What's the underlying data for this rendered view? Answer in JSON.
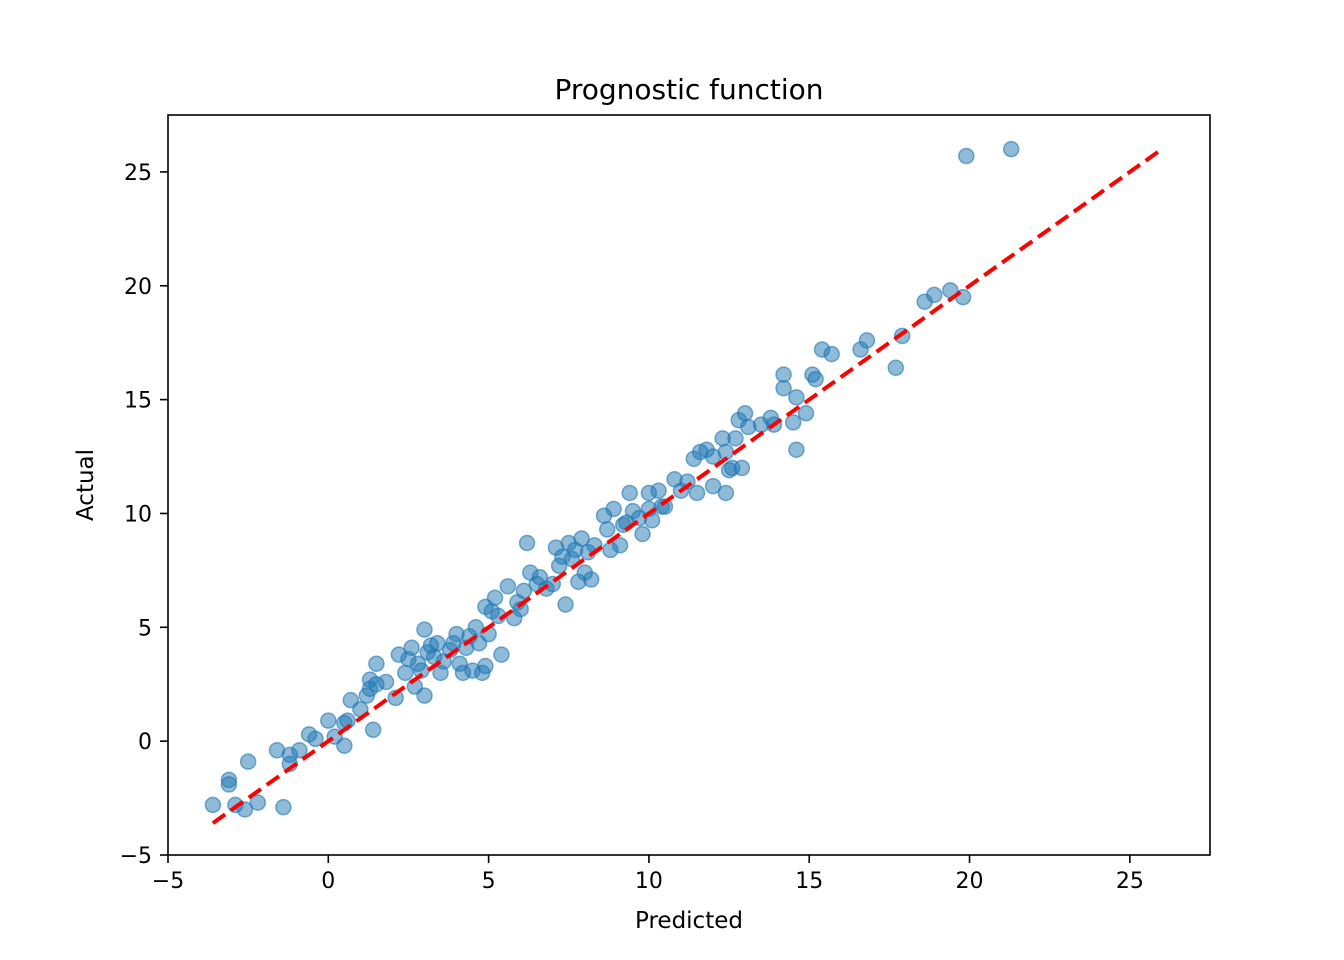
{
  "chart_data": {
    "type": "scatter",
    "title": "Prognostic function",
    "xlabel": "Predicted",
    "ylabel": "Actual",
    "xlim": [
      -5,
      27.5
    ],
    "ylim": [
      -5,
      27.5
    ],
    "xticks": [
      -5,
      0,
      5,
      10,
      15,
      20,
      25
    ],
    "yticks": [
      -5,
      0,
      5,
      10,
      15,
      20,
      25
    ],
    "xtick_labels": [
      "−5",
      "0",
      "5",
      "10",
      "15",
      "20",
      "25"
    ],
    "ytick_labels": [
      "−5",
      "0",
      "5",
      "10",
      "15",
      "20",
      "25"
    ],
    "grid": false,
    "legend": "none",
    "colors": {
      "points": "#1f77b4",
      "reference_line": "#ff0000",
      "axes": "#000000"
    },
    "reference_line": {
      "x": [
        -3.6,
        26
      ],
      "y": [
        -3.6,
        26
      ],
      "style": "dashed"
    },
    "series": [
      {
        "points": [
          [
            -3.6,
            -2.8
          ],
          [
            -3.1,
            -1.7
          ],
          [
            -3.1,
            -1.9
          ],
          [
            -2.9,
            -2.8
          ],
          [
            -2.6,
            -3.0
          ],
          [
            -2.5,
            -0.9
          ],
          [
            -2.2,
            -2.7
          ],
          [
            -1.6,
            -0.4
          ],
          [
            -1.4,
            -2.9
          ],
          [
            -1.2,
            -0.6
          ],
          [
            -1.2,
            -1.0
          ],
          [
            -0.9,
            -0.4
          ],
          [
            -0.6,
            0.3
          ],
          [
            -0.4,
            0.1
          ],
          [
            0.0,
            0.9
          ],
          [
            0.2,
            0.2
          ],
          [
            0.5,
            0.8
          ],
          [
            0.5,
            -0.2
          ],
          [
            0.6,
            0.9
          ],
          [
            0.7,
            1.8
          ],
          [
            1.0,
            1.4
          ],
          [
            1.2,
            2.0
          ],
          [
            1.3,
            2.7
          ],
          [
            1.3,
            2.3
          ],
          [
            1.4,
            0.5
          ],
          [
            1.5,
            3.4
          ],
          [
            1.5,
            2.5
          ],
          [
            1.8,
            2.6
          ],
          [
            2.1,
            1.9
          ],
          [
            2.2,
            3.8
          ],
          [
            2.4,
            3.0
          ],
          [
            2.5,
            3.6
          ],
          [
            2.6,
            4.1
          ],
          [
            2.7,
            2.4
          ],
          [
            2.8,
            3.4
          ],
          [
            2.9,
            3.1
          ],
          [
            3.0,
            4.9
          ],
          [
            3.0,
            2.0
          ],
          [
            3.1,
            3.9
          ],
          [
            3.2,
            4.2
          ],
          [
            3.3,
            3.7
          ],
          [
            3.4,
            4.3
          ],
          [
            3.5,
            3.0
          ],
          [
            3.6,
            3.5
          ],
          [
            3.8,
            4.0
          ],
          [
            3.9,
            4.3
          ],
          [
            4.0,
            4.7
          ],
          [
            4.1,
            3.4
          ],
          [
            4.2,
            3.0
          ],
          [
            4.3,
            4.1
          ],
          [
            4.4,
            4.6
          ],
          [
            4.5,
            3.1
          ],
          [
            4.6,
            5.0
          ],
          [
            4.7,
            4.3
          ],
          [
            4.8,
            3.0
          ],
          [
            4.9,
            5.9
          ],
          [
            4.9,
            3.3
          ],
          [
            5.0,
            4.7
          ],
          [
            5.1,
            5.7
          ],
          [
            5.2,
            6.3
          ],
          [
            5.3,
            5.5
          ],
          [
            5.4,
            3.8
          ],
          [
            5.6,
            6.8
          ],
          [
            5.8,
            5.4
          ],
          [
            5.9,
            6.1
          ],
          [
            6.0,
            5.8
          ],
          [
            6.1,
            6.6
          ],
          [
            6.2,
            8.7
          ],
          [
            6.3,
            7.4
          ],
          [
            6.5,
            6.9
          ],
          [
            6.6,
            7.2
          ],
          [
            6.8,
            6.7
          ],
          [
            7.0,
            6.9
          ],
          [
            7.1,
            8.5
          ],
          [
            7.2,
            7.7
          ],
          [
            7.3,
            8.1
          ],
          [
            7.4,
            6.0
          ],
          [
            7.5,
            8.7
          ],
          [
            7.6,
            8.0
          ],
          [
            7.7,
            8.4
          ],
          [
            7.8,
            7.0
          ],
          [
            7.9,
            8.9
          ],
          [
            8.0,
            7.4
          ],
          [
            8.1,
            8.3
          ],
          [
            8.2,
            7.1
          ],
          [
            8.3,
            8.6
          ],
          [
            8.6,
            9.9
          ],
          [
            8.7,
            9.3
          ],
          [
            8.8,
            8.4
          ],
          [
            8.9,
            10.2
          ],
          [
            9.1,
            8.6
          ],
          [
            9.2,
            9.5
          ],
          [
            9.3,
            9.6
          ],
          [
            9.4,
            10.9
          ],
          [
            9.5,
            10.1
          ],
          [
            9.7,
            9.8
          ],
          [
            9.8,
            9.1
          ],
          [
            10.0,
            10.9
          ],
          [
            10.0,
            10.2
          ],
          [
            10.1,
            9.7
          ],
          [
            10.3,
            11.0
          ],
          [
            10.4,
            10.3
          ],
          [
            10.5,
            10.3
          ],
          [
            10.8,
            11.5
          ],
          [
            11.0,
            11.0
          ],
          [
            11.2,
            11.4
          ],
          [
            11.4,
            12.4
          ],
          [
            11.5,
            10.9
          ],
          [
            11.6,
            12.7
          ],
          [
            11.8,
            12.8
          ],
          [
            12.0,
            12.5
          ],
          [
            12.0,
            11.2
          ],
          [
            12.3,
            13.3
          ],
          [
            12.4,
            10.9
          ],
          [
            12.4,
            12.7
          ],
          [
            12.5,
            11.9
          ],
          [
            12.6,
            12.0
          ],
          [
            12.7,
            13.3
          ],
          [
            12.8,
            14.1
          ],
          [
            12.9,
            12.0
          ],
          [
            13.0,
            14.4
          ],
          [
            13.1,
            13.8
          ],
          [
            13.5,
            13.9
          ],
          [
            13.8,
            14.2
          ],
          [
            13.9,
            13.9
          ],
          [
            14.2,
            16.1
          ],
          [
            14.2,
            15.5
          ],
          [
            14.5,
            14.0
          ],
          [
            14.6,
            15.1
          ],
          [
            14.6,
            12.8
          ],
          [
            14.9,
            14.4
          ],
          [
            15.1,
            16.1
          ],
          [
            15.2,
            15.9
          ],
          [
            15.4,
            17.2
          ],
          [
            15.7,
            17.0
          ],
          [
            16.6,
            17.2
          ],
          [
            16.8,
            17.6
          ],
          [
            17.7,
            16.4
          ],
          [
            17.9,
            17.8
          ],
          [
            18.6,
            19.3
          ],
          [
            18.9,
            19.6
          ],
          [
            19.4,
            19.8
          ],
          [
            19.8,
            19.5
          ],
          [
            19.9,
            25.7
          ],
          [
            21.3,
            26.0
          ]
        ]
      }
    ]
  }
}
